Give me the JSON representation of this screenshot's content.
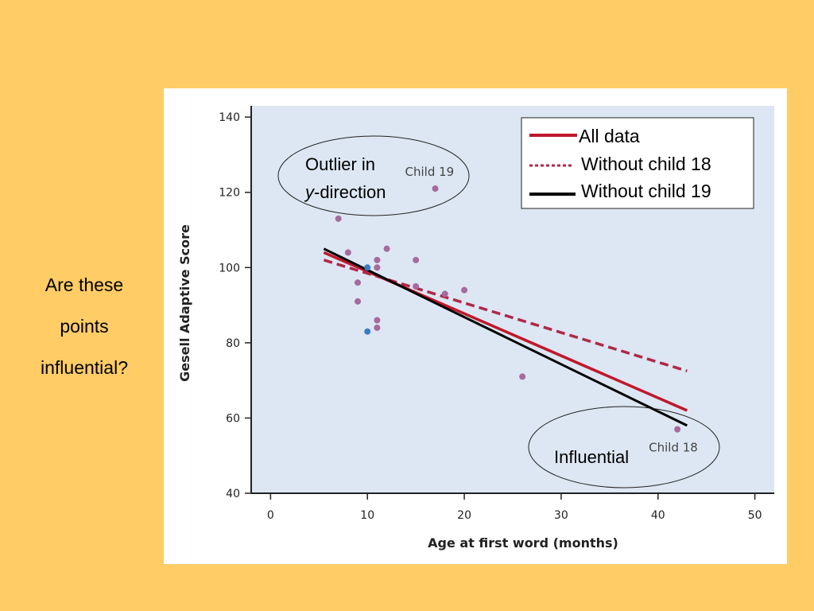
{
  "side_question": [
    "Are these",
    "points",
    "influential?"
  ],
  "annotations": {
    "outlier_line1": "Outlier in",
    "outlier_line2_italic": "y",
    "outlier_line2_rest": "-direction",
    "influential": "Influential"
  },
  "colors": {
    "background": "#FFCC66",
    "plot_bg": "#DCE7F3",
    "point": "#A66A9C",
    "point_highlight": "#3C7BBF",
    "all_data": "#C0182A",
    "without_18": "#B02848",
    "without_19": "#000000"
  },
  "chart_data": {
    "type": "scatter",
    "xlabel": "Age at first word (months)",
    "ylabel": "Gesell Adaptive Score",
    "xlim": [
      -2,
      52
    ],
    "ylim": [
      40,
      143
    ],
    "xticks": [
      0,
      10,
      20,
      30,
      40,
      50
    ],
    "yticks": [
      40,
      60,
      80,
      100,
      120,
      140
    ],
    "grid": false,
    "legend_position": "top-right",
    "points": [
      {
        "x": 7,
        "y": 113
      },
      {
        "x": 8,
        "y": 104
      },
      {
        "x": 9,
        "y": 96
      },
      {
        "x": 9,
        "y": 91
      },
      {
        "x": 10,
        "y": 100,
        "highlight": true
      },
      {
        "x": 10,
        "y": 83,
        "highlight": true
      },
      {
        "x": 11,
        "y": 102
      },
      {
        "x": 11,
        "y": 100
      },
      {
        "x": 11,
        "y": 86
      },
      {
        "x": 11,
        "y": 84
      },
      {
        "x": 12,
        "y": 105
      },
      {
        "x": 15,
        "y": 102
      },
      {
        "x": 15,
        "y": 95
      },
      {
        "x": 17,
        "y": 121
      },
      {
        "x": 18,
        "y": 93
      },
      {
        "x": 20,
        "y": 94
      },
      {
        "x": 26,
        "y": 71
      },
      {
        "x": 42,
        "y": 57
      }
    ],
    "point_labels": [
      {
        "text": "Child 19",
        "x": 17,
        "y": 121
      },
      {
        "text": "Child 18",
        "x": 42,
        "y": 57
      }
    ],
    "series": [
      {
        "name": "All data",
        "style": "solid",
        "x": [
          5.5,
          43
        ],
        "y": [
          104,
          62
        ]
      },
      {
        "name": "Without child 18",
        "style": "dashed",
        "x": [
          5.5,
          43
        ],
        "y": [
          102,
          72.5
        ]
      },
      {
        "name": "Without child 19",
        "style": "solid",
        "x": [
          5.5,
          43
        ],
        "y": [
          105,
          58
        ]
      }
    ]
  }
}
